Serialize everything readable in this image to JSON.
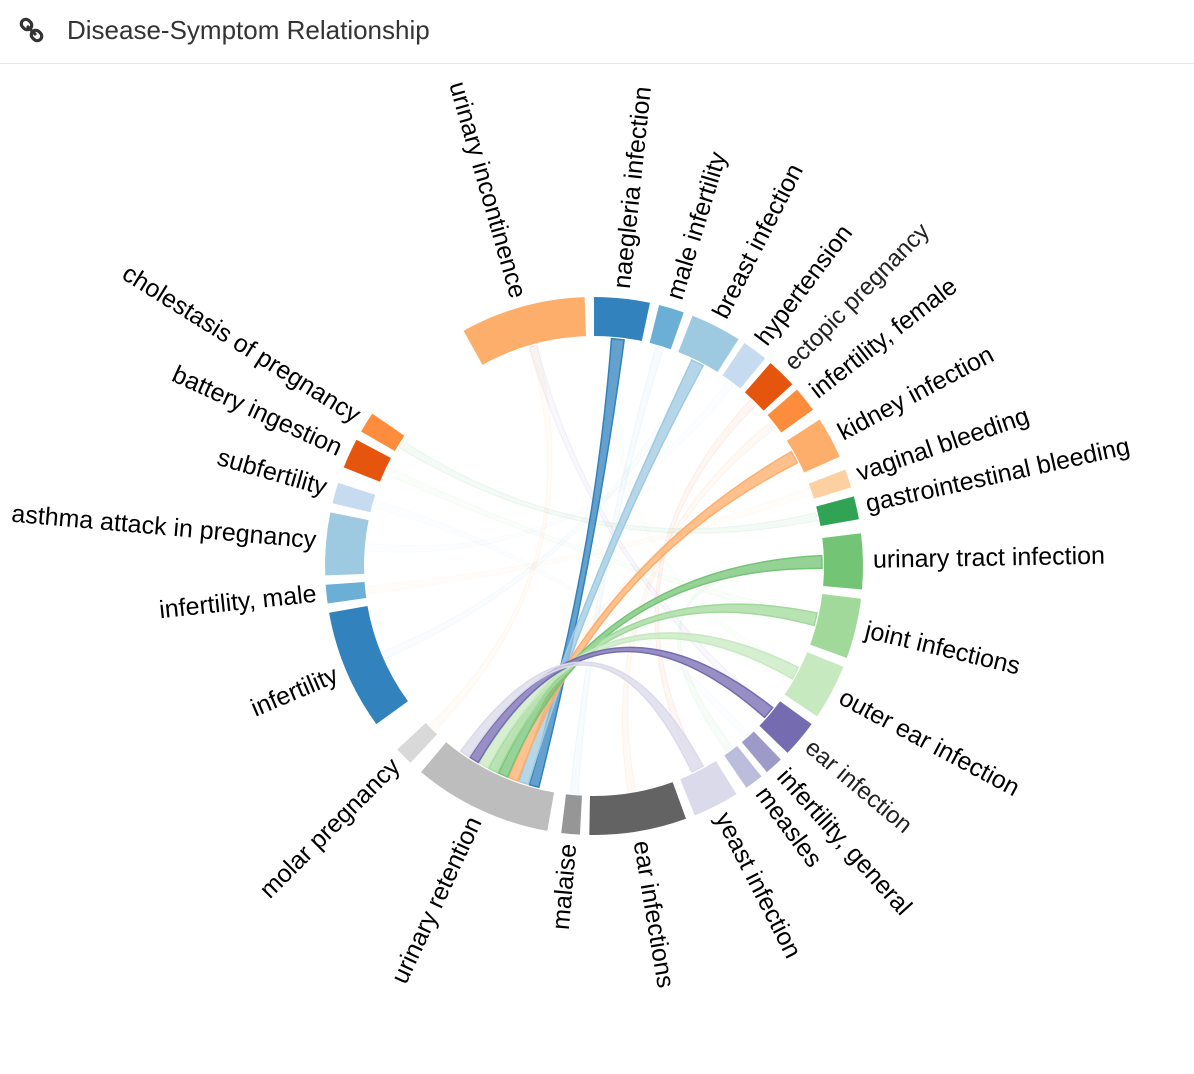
{
  "header": {
    "title": "Disease-Symptom Relationship",
    "icon": "link-icon"
  },
  "chart_data": {
    "type": "chord",
    "title": "Disease-Symptom Relationship",
    "groups": [
      {
        "name": "urinary incontinence",
        "color": "#fdae6b"
      },
      {
        "name": "naegleria infection",
        "color": "#3182bd"
      },
      {
        "name": "male infertility",
        "color": "#6baed6"
      },
      {
        "name": "breast infection",
        "color": "#9ecae1"
      },
      {
        "name": "hypertension",
        "color": "#c6dbef"
      },
      {
        "name": "ectopic pregnancy",
        "color": "#e6550d"
      },
      {
        "name": "infertility, female",
        "color": "#fd8d3c"
      },
      {
        "name": "kidney infection",
        "color": "#fdae6b"
      },
      {
        "name": "vaginal bleeding",
        "color": "#fdd0a2"
      },
      {
        "name": "gastrointestinal bleeding",
        "color": "#31a354"
      },
      {
        "name": "urinary tract infection",
        "color": "#74c476"
      },
      {
        "name": "joint infections",
        "color": "#a1d99b"
      },
      {
        "name": "outer ear infection",
        "color": "#c7e9c0"
      },
      {
        "name": "ear infection",
        "color": "#756bb1"
      },
      {
        "name": "infertility, general",
        "color": "#9e9ac8"
      },
      {
        "name": "measles",
        "color": "#bcbddc"
      },
      {
        "name": "yeast infection",
        "color": "#dadaeb"
      },
      {
        "name": "ear infections",
        "color": "#636363"
      },
      {
        "name": "malaise",
        "color": "#969696"
      },
      {
        "name": "urinary retention",
        "color": "#bdbdbd"
      },
      {
        "name": "molar pregnancy",
        "color": "#d9d9d9"
      },
      {
        "name": "infertility",
        "color": "#3182bd"
      },
      {
        "name": "infertility, male",
        "color": "#6baed6"
      },
      {
        "name": "asthma attack in pregnancy",
        "color": "#9ecae1"
      },
      {
        "name": "subfertility",
        "color": "#c6dbef"
      },
      {
        "name": "battery ingestion",
        "color": "#e6550d"
      },
      {
        "name": "cholestasis of pregnancy",
        "color": "#fd8d3c"
      }
    ],
    "highlighted_source": "urinary retention",
    "highlighted_links": [
      "naegleria infection",
      "breast infection",
      "kidney infection",
      "urinary tract infection",
      "joint infections",
      "outer ear infection",
      "ear infection",
      "yeast infection"
    ]
  }
}
